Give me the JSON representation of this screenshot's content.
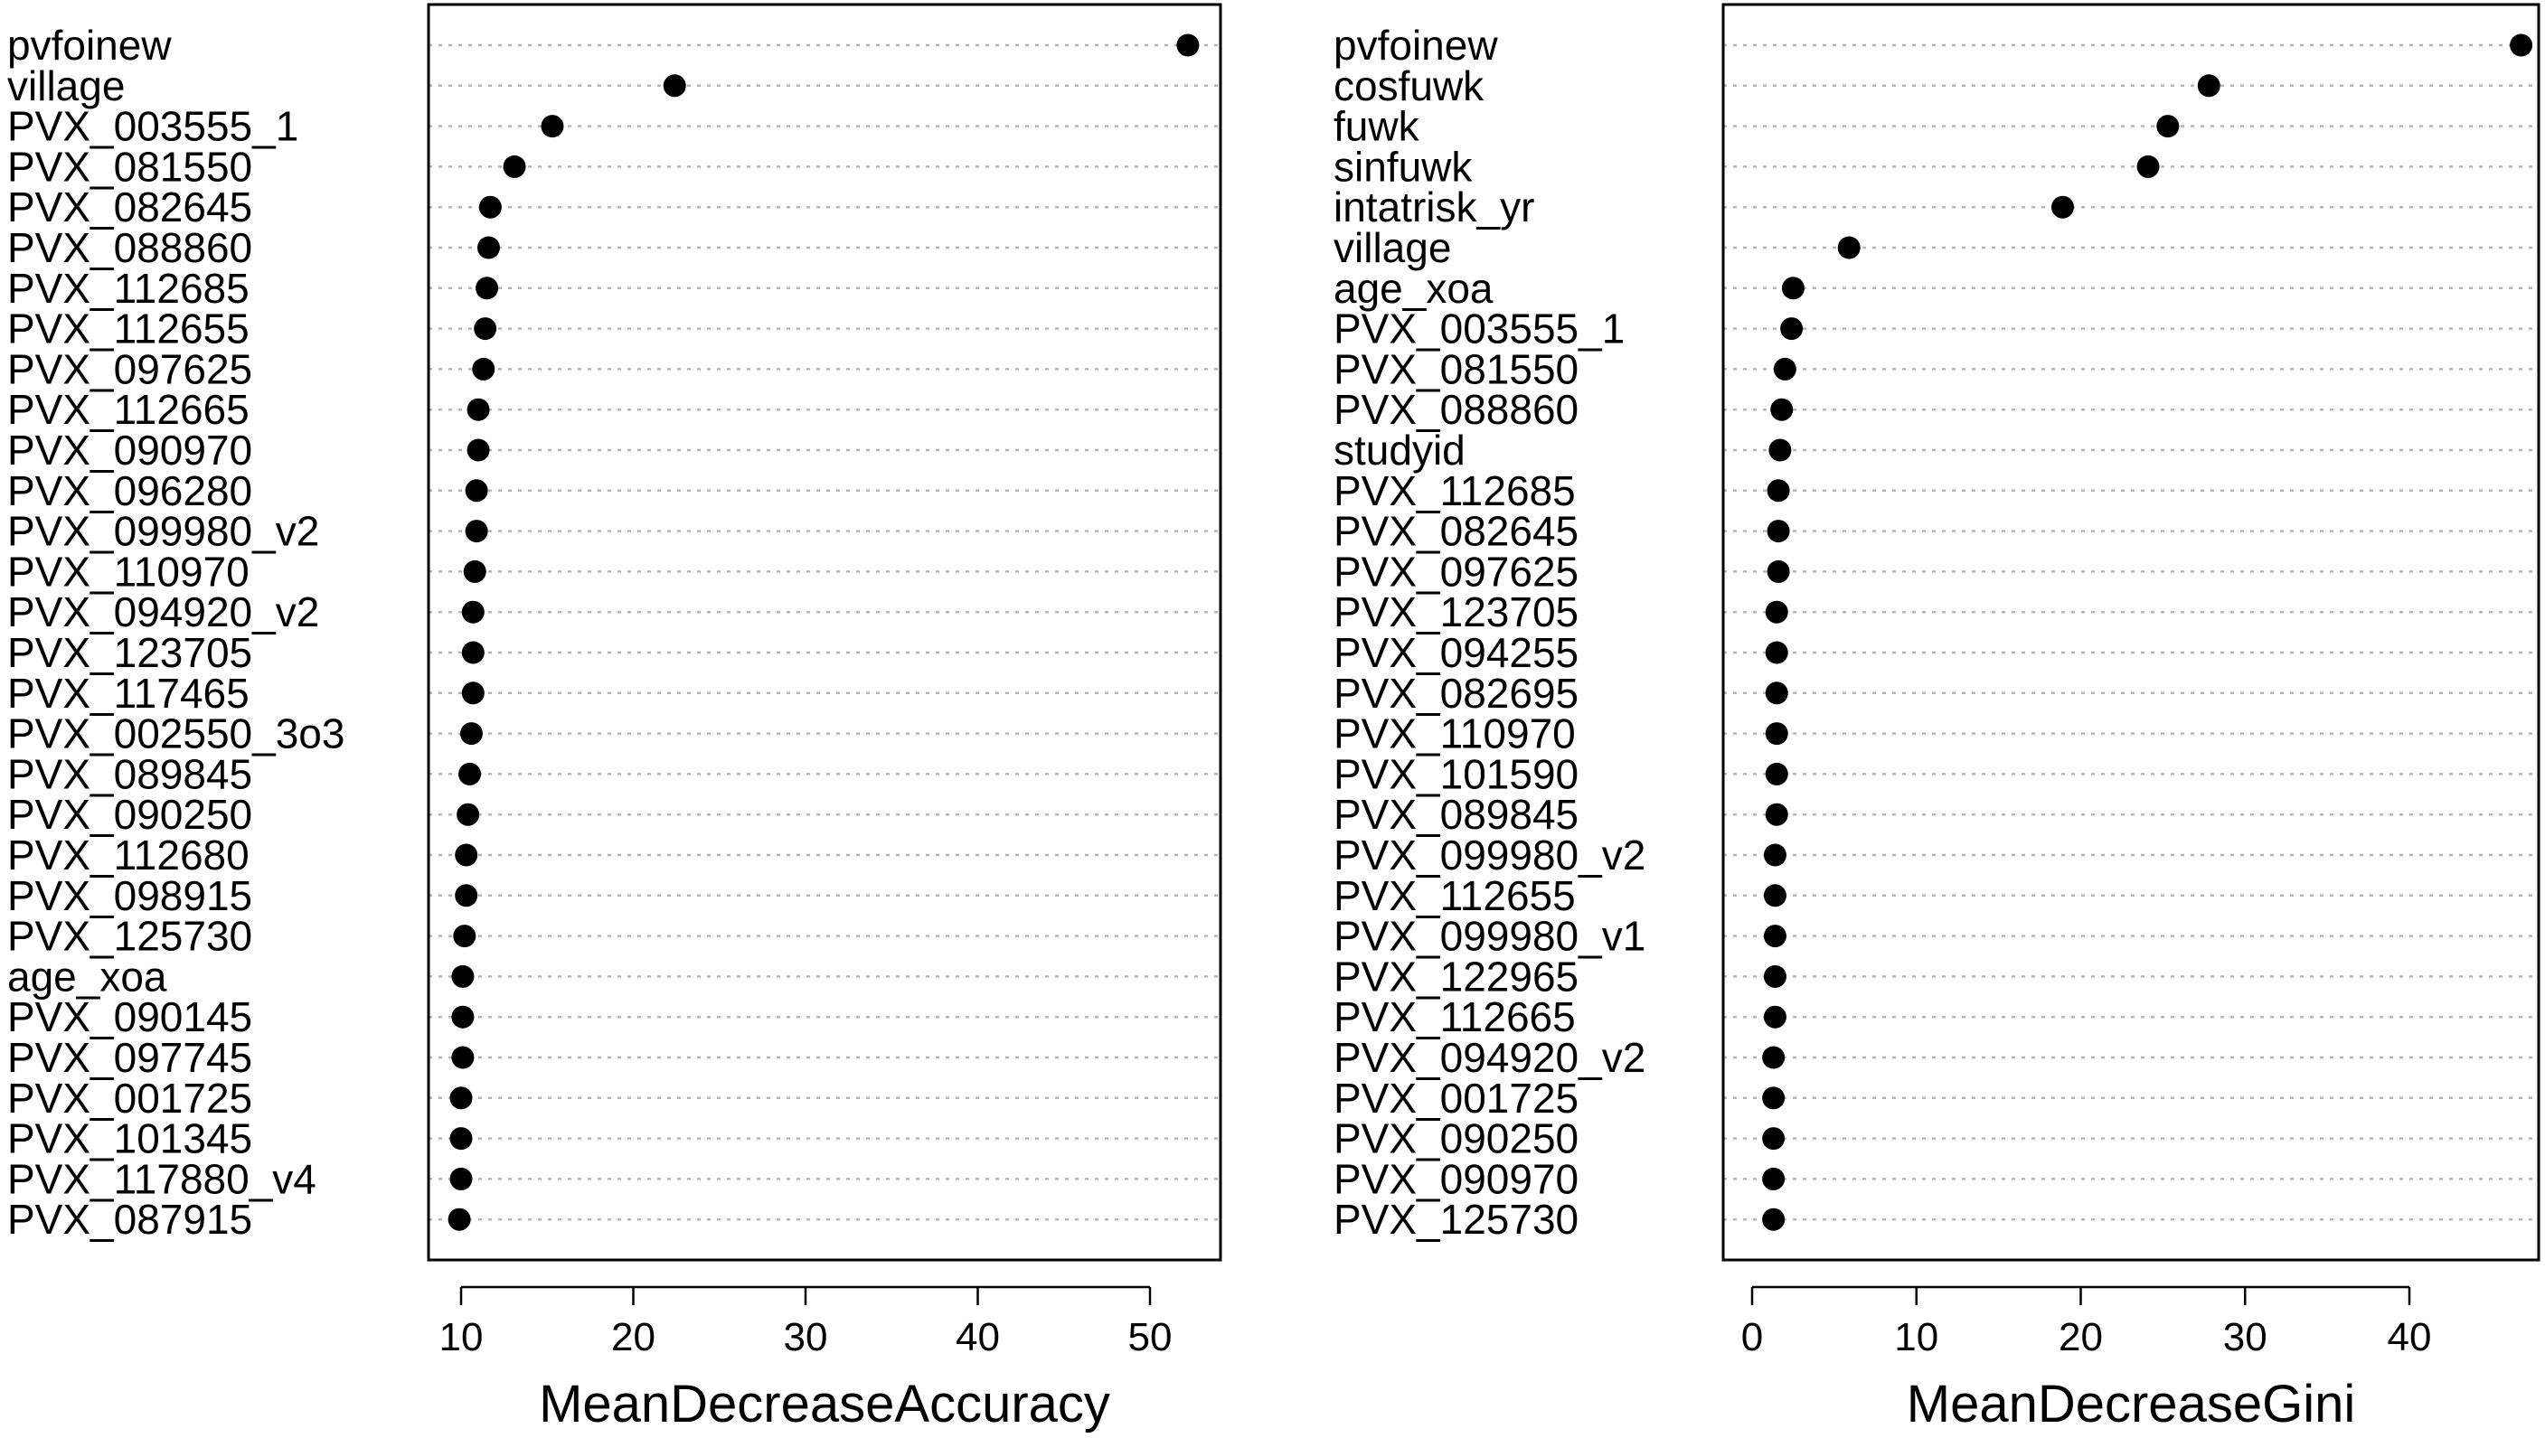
{
  "chart_data": [
    {
      "type": "scatter",
      "xlabel": "MeanDecreaseAccuracy",
      "xlim": [
        10,
        52
      ],
      "xticks": [
        10,
        20,
        30,
        40,
        50
      ],
      "grid": "horizontal dotted",
      "point_color": "#000000",
      "labels": [
        "pvfoinew",
        "village",
        "PVX_003555_1",
        "PVX_081550",
        "PVX_082645",
        "PVX_088860",
        "PVX_112685",
        "PVX_112655",
        "PVX_097625",
        "PVX_112665",
        "PVX_090970",
        "PVX_096280",
        "PVX_099980_v2",
        "PVX_110970",
        "PVX_094920_v2",
        "PVX_123705",
        "PVX_117465",
        "PVX_002550_3o3",
        "PVX_089845",
        "PVX_090250",
        "PVX_112680",
        "PVX_098915",
        "PVX_125730",
        "age_xoa",
        "PVX_090145",
        "PVX_097745",
        "PVX_001725",
        "PVX_101345",
        "PVX_117880_v4",
        "PVX_087915"
      ],
      "values": [
        52.2,
        22.4,
        15.3,
        13.1,
        11.7,
        11.6,
        11.5,
        11.4,
        11.3,
        11.0,
        11.0,
        10.9,
        10.9,
        10.8,
        10.7,
        10.7,
        10.7,
        10.6,
        10.5,
        10.4,
        10.3,
        10.3,
        10.2,
        10.1,
        10.1,
        10.1,
        10.0,
        10.0,
        10.0,
        9.9
      ]
    },
    {
      "type": "scatter",
      "xlabel": "MeanDecreaseGini",
      "xlim": [
        0,
        47
      ],
      "xticks": [
        0,
        10,
        20,
        30,
        40
      ],
      "grid": "horizontal dotted",
      "point_color": "#000000",
      "labels": [
        "pvfoinew",
        "cosfuwk",
        "fuwk",
        "sinfuwk",
        "intatrisk_yr",
        "village",
        "age_xoa",
        "PVX_003555_1",
        "PVX_081550",
        "PVX_088860",
        "studyid",
        "PVX_112685",
        "PVX_082645",
        "PVX_097625",
        "PVX_123705",
        "PVX_094255",
        "PVX_082695",
        "PVX_110970",
        "PVX_101590",
        "PVX_089845",
        "PVX_099980_v2",
        "PVX_112655",
        "PVX_099980_v1",
        "PVX_122965",
        "PVX_112665",
        "PVX_094920_v2",
        "PVX_001725",
        "PVX_090250",
        "PVX_090970",
        "PVX_125730"
      ],
      "values": [
        46.8,
        27.8,
        25.3,
        24.1,
        18.9,
        5.9,
        2.5,
        2.4,
        2.0,
        1.8,
        1.7,
        1.6,
        1.6,
        1.6,
        1.5,
        1.5,
        1.5,
        1.5,
        1.5,
        1.5,
        1.4,
        1.4,
        1.4,
        1.4,
        1.4,
        1.3,
        1.3,
        1.3,
        1.3,
        1.3
      ]
    }
  ]
}
